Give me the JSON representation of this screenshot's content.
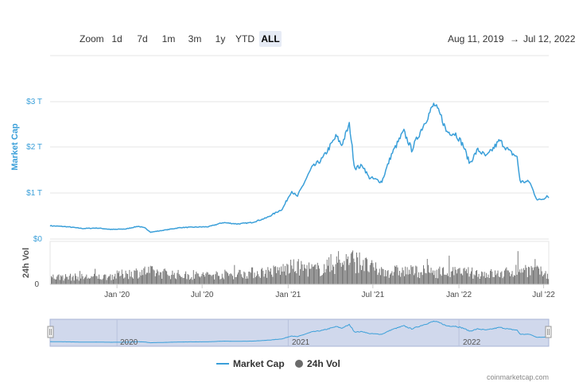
{
  "toolbar": {
    "zoom_label": "Zoom",
    "ranges": [
      "1d",
      "7d",
      "1m",
      "3m",
      "1y",
      "YTD",
      "ALL"
    ],
    "active_range": "ALL",
    "date_from": "Aug 11, 2019",
    "arrow": "→",
    "date_to": "Jul 12, 2022"
  },
  "chart_data": {
    "type": "line",
    "title": "",
    "x_start": "2019-08-11",
    "x_end": "2022-07-12",
    "x_tick_labels": [
      "Jan '20",
      "Jul '20",
      "Jan '21",
      "Jul '21",
      "Jan '22",
      "Jul '22"
    ],
    "y_tick_labels": [
      "$0",
      "$1 T",
      "$2 T",
      "$3 T"
    ],
    "ylabel": "Market Cap",
    "ylim": [
      0,
      3
    ],
    "series": [
      {
        "name": "Market Cap",
        "unit": "T USD",
        "color": "#3a9fd9",
        "points": [
          [
            "2019-08-11",
            0.29
          ],
          [
            "2019-09-15",
            0.27
          ],
          [
            "2019-10-20",
            0.23
          ],
          [
            "2019-11-20",
            0.24
          ],
          [
            "2019-12-20",
            0.21
          ],
          [
            "2020-01-20",
            0.22
          ],
          [
            "2020-02-15",
            0.28
          ],
          [
            "2020-03-01",
            0.24
          ],
          [
            "2020-03-13",
            0.15
          ],
          [
            "2020-04-15",
            0.2
          ],
          [
            "2020-05-15",
            0.25
          ],
          [
            "2020-06-15",
            0.26
          ],
          [
            "2020-07-15",
            0.27
          ],
          [
            "2020-08-15",
            0.36
          ],
          [
            "2020-09-15",
            0.33
          ],
          [
            "2020-10-15",
            0.36
          ],
          [
            "2020-11-15",
            0.46
          ],
          [
            "2020-12-01",
            0.55
          ],
          [
            "2020-12-20",
            0.66
          ],
          [
            "2021-01-08",
            1.05
          ],
          [
            "2021-01-20",
            0.92
          ],
          [
            "2021-02-20",
            1.55
          ],
          [
            "2021-03-15",
            1.75
          ],
          [
            "2021-04-14",
            2.25
          ],
          [
            "2021-04-25",
            2.05
          ],
          [
            "2021-05-12",
            2.5
          ],
          [
            "2021-05-23",
            1.55
          ],
          [
            "2021-06-10",
            1.6
          ],
          [
            "2021-06-22",
            1.35
          ],
          [
            "2021-07-20",
            1.25
          ],
          [
            "2021-08-10",
            1.85
          ],
          [
            "2021-09-05",
            2.35
          ],
          [
            "2021-09-22",
            1.95
          ],
          [
            "2021-10-20",
            2.55
          ],
          [
            "2021-11-09",
            2.95
          ],
          [
            "2021-11-25",
            2.65
          ],
          [
            "2021-12-05",
            2.35
          ],
          [
            "2021-12-25",
            2.3
          ],
          [
            "2022-01-10",
            2.05
          ],
          [
            "2022-01-24",
            1.65
          ],
          [
            "2022-02-10",
            1.95
          ],
          [
            "2022-03-01",
            1.8
          ],
          [
            "2022-03-29",
            2.15
          ],
          [
            "2022-04-20",
            1.9
          ],
          [
            "2022-05-05",
            1.8
          ],
          [
            "2022-05-12",
            1.25
          ],
          [
            "2022-06-01",
            1.25
          ],
          [
            "2022-06-13",
            0.95
          ],
          [
            "2022-06-18",
            0.85
          ],
          [
            "2022-07-01",
            0.88
          ],
          [
            "2022-07-08",
            0.95
          ],
          [
            "2022-07-12",
            0.92
          ]
        ]
      },
      {
        "name": "24h Vol",
        "color": "#6b6b6b",
        "ylabel": "24h Vol",
        "y_tick_labels": [
          "0"
        ],
        "levels": [
          [
            "2019-08-11",
            0.25
          ],
          [
            "2019-12-01",
            0.25
          ],
          [
            "2020-03-01",
            0.45
          ],
          [
            "2020-06-01",
            0.3
          ],
          [
            "2020-09-01",
            0.35
          ],
          [
            "2020-12-01",
            0.45
          ],
          [
            "2021-01-15",
            0.6
          ],
          [
            "2021-03-01",
            0.5
          ],
          [
            "2021-05-15",
            0.85
          ],
          [
            "2021-07-15",
            0.45
          ],
          [
            "2021-10-15",
            0.45
          ],
          [
            "2022-01-15",
            0.4
          ],
          [
            "2022-04-01",
            0.35
          ],
          [
            "2022-05-15",
            0.55
          ],
          [
            "2022-07-12",
            0.35
          ]
        ]
      }
    ],
    "navigator_labels": [
      "2020",
      "2021",
      "2022"
    ],
    "legend": [
      "Market Cap",
      "24h Vol"
    ],
    "credit": "coinmarketcap.com"
  }
}
